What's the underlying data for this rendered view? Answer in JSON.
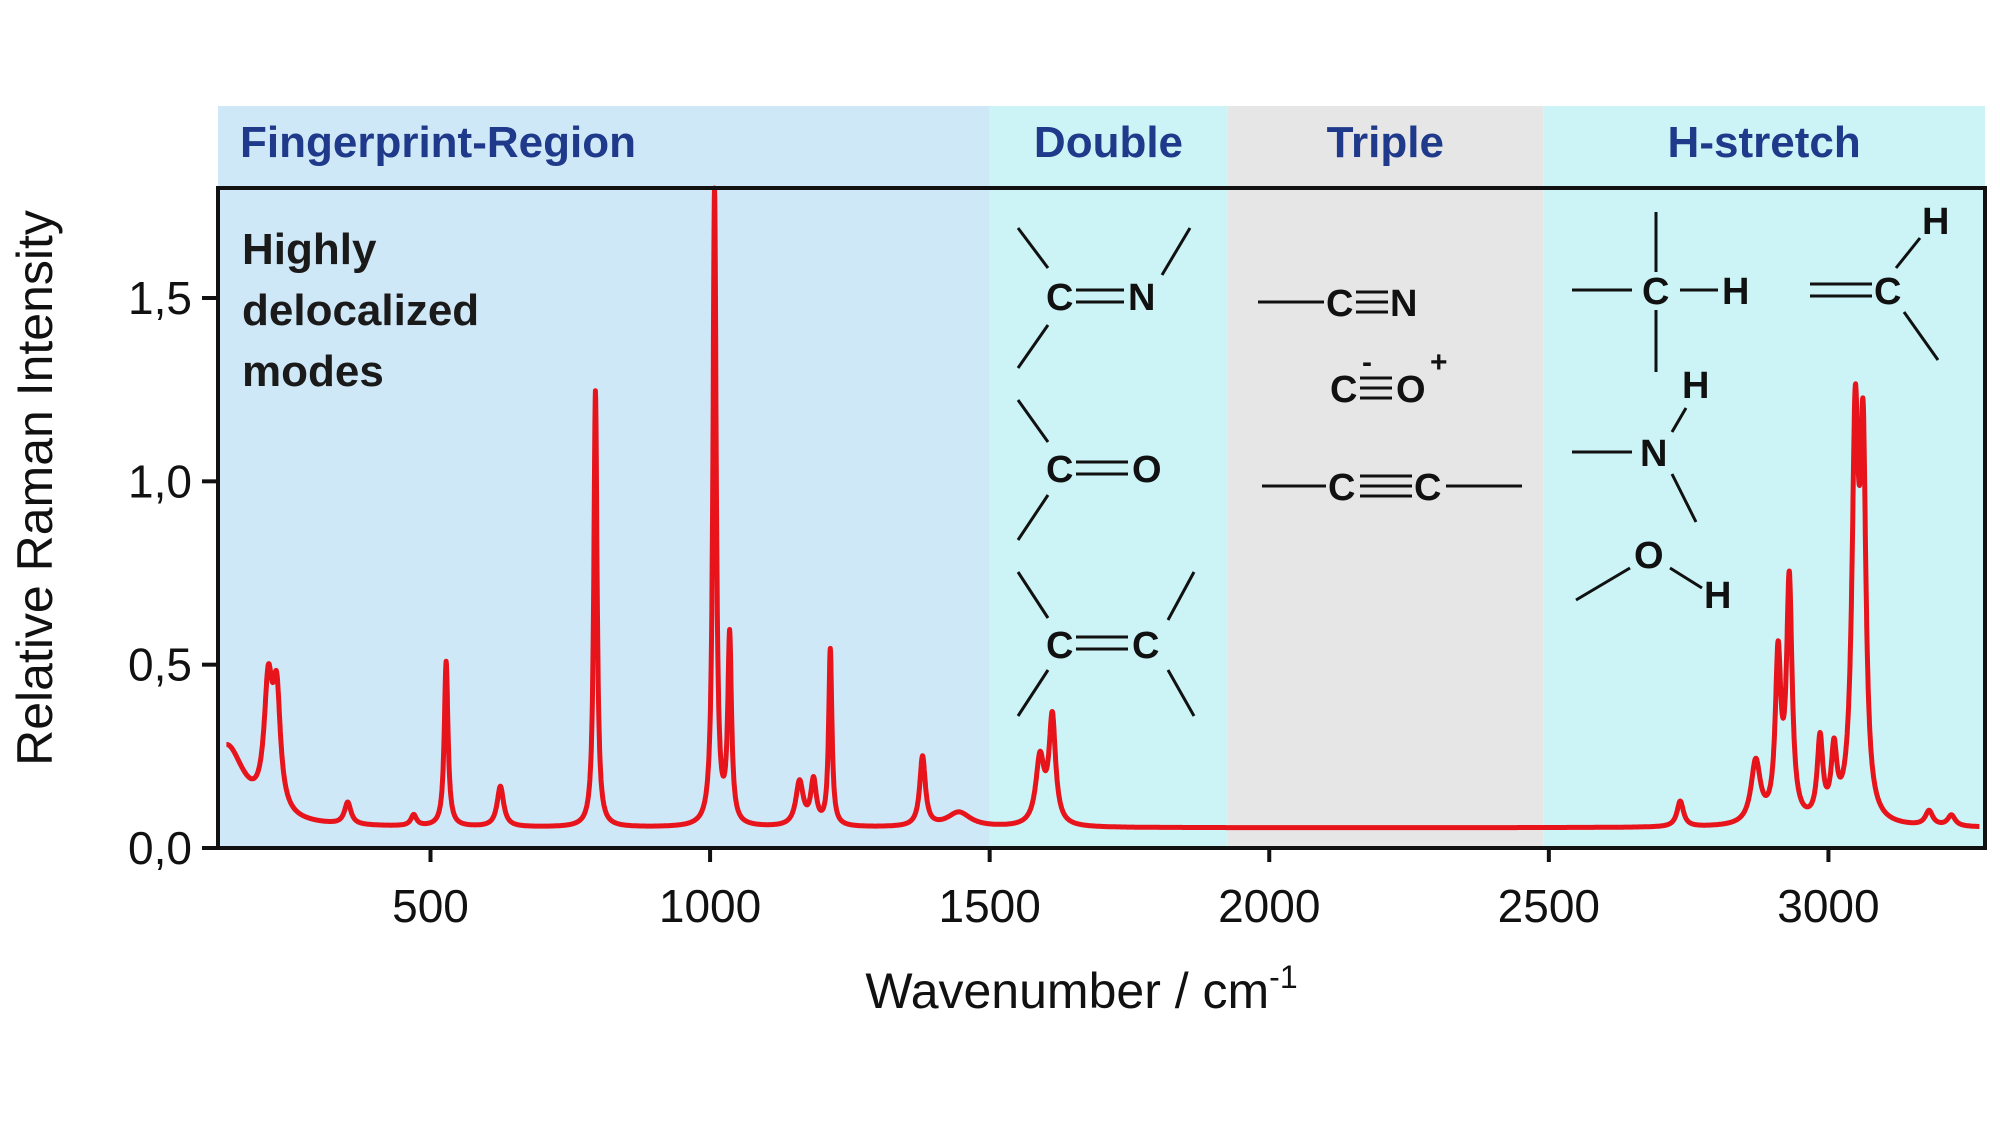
{
  "chart_data": {
    "type": "line",
    "title": "",
    "xlabel": "Wavenumber / cm",
    "xlabel_sup": "-1",
    "ylabel": "Relative Raman Intensity",
    "xlim": [
      120,
      3280
    ],
    "ylim": [
      0,
      1.8
    ],
    "x_ticks": [
      500,
      1000,
      1500,
      2000,
      2500,
      3000
    ],
    "x_tick_labels": [
      "500",
      "1000",
      "1500",
      "2000",
      "2500",
      "3000"
    ],
    "y_ticks": [
      0,
      0.5,
      1.0,
      1.5
    ],
    "y_tick_labels": [
      "0,0",
      "0,5",
      "1,0",
      "1,5"
    ],
    "grid": false,
    "line_color": "#e8141c",
    "regions": [
      {
        "label": "Fingerprint-Region",
        "x_start": 120,
        "x_end": 1500,
        "color": "#cfe8f8"
      },
      {
        "label": "Double",
        "x_start": 1500,
        "x_end": 1925,
        "color": "#ccf4f6"
      },
      {
        "label": "Triple",
        "x_start": 1925,
        "x_end": 2490,
        "color": "#e6e6e6"
      },
      {
        "label": "H-stretch",
        "x_start": 2490,
        "x_end": 3280,
        "color": "#ccf4f6"
      }
    ],
    "annotation_lines": [
      "Highly",
      "delocalized",
      "modes"
    ],
    "baseline": 0.055,
    "peaks": [
      {
        "x": 135,
        "y": 0.22,
        "w": 40
      },
      {
        "x": 210,
        "y": 0.33,
        "w": 9
      },
      {
        "x": 225,
        "y": 0.3,
        "w": 8
      },
      {
        "x": 352,
        "y": 0.06,
        "w": 7
      },
      {
        "x": 470,
        "y": 0.03,
        "w": 6
      },
      {
        "x": 528,
        "y": 0.45,
        "w": 4
      },
      {
        "x": 625,
        "y": 0.11,
        "w": 7
      },
      {
        "x": 795,
        "y": 1.19,
        "w": 3.5
      },
      {
        "x": 1008,
        "y": 1.74,
        "w": 3.5
      },
      {
        "x": 1035,
        "y": 0.51,
        "w": 4
      },
      {
        "x": 1160,
        "y": 0.12,
        "w": 8
      },
      {
        "x": 1185,
        "y": 0.12,
        "w": 6
      },
      {
        "x": 1215,
        "y": 0.48,
        "w": 3.5
      },
      {
        "x": 1380,
        "y": 0.19,
        "w": 6
      },
      {
        "x": 1445,
        "y": 0.04,
        "w": 25
      },
      {
        "x": 1590,
        "y": 0.18,
        "w": 9
      },
      {
        "x": 1612,
        "y": 0.29,
        "w": 7
      },
      {
        "x": 2735,
        "y": 0.07,
        "w": 7
      },
      {
        "x": 2870,
        "y": 0.17,
        "w": 10
      },
      {
        "x": 2910,
        "y": 0.44,
        "w": 6
      },
      {
        "x": 2930,
        "y": 0.65,
        "w": 6
      },
      {
        "x": 2985,
        "y": 0.22,
        "w": 6
      },
      {
        "x": 3010,
        "y": 0.18,
        "w": 6
      },
      {
        "x": 3048,
        "y": 1.05,
        "w": 7
      },
      {
        "x": 3062,
        "y": 0.95,
        "w": 6
      },
      {
        "x": 3180,
        "y": 0.04,
        "w": 8
      },
      {
        "x": 3220,
        "y": 0.03,
        "w": 8
      }
    ]
  },
  "chem": {
    "double": {
      "cn_c": "C",
      "cn_n": "N",
      "co_c": "C",
      "co_o": "O",
      "cc_c1": "C",
      "cc_c2": "C"
    },
    "triple": {
      "cn_c": "C",
      "cn_n": "N",
      "co_c": "C",
      "co_o": "O",
      "co_minus": "-",
      "co_plus": "+",
      "cc_c1": "C",
      "cc_c2": "C"
    },
    "hstretch": {
      "ch3_c": "C",
      "ch3_h": "H",
      "vinyl_c": "C",
      "vinyl_h": "H",
      "nh_n": "N",
      "nh_h": "H",
      "oh_o": "O",
      "oh_h": "H"
    }
  }
}
